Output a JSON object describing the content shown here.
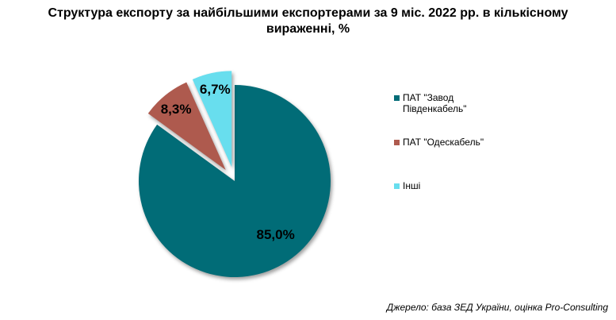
{
  "chart_data": {
    "type": "pie",
    "title": "Структура експорту за найбільшими експортерами за 9 міс. 2022 рр. в кількісному вираженні, %",
    "unit": "%",
    "slices": [
      {
        "name": "ПАТ \"Завод Південкабель\"",
        "value": 85.0,
        "label": "85,0%",
        "color": "#016C77",
        "exploded": false
      },
      {
        "name": "ПАТ \"Одескабель\"",
        "value": 8.3,
        "label": "8,3%",
        "color": "#AE5A4E",
        "exploded": true
      },
      {
        "name": "Інші",
        "value": 6.7,
        "label": "6,7%",
        "color": "#68DEEE",
        "exploded": true
      }
    ],
    "legend": {
      "position": "right"
    },
    "start_angle_deg": 0,
    "direction": "clockwise",
    "source": "Джерело: база ЗЕД України, оцінка Pro-Consulting"
  }
}
